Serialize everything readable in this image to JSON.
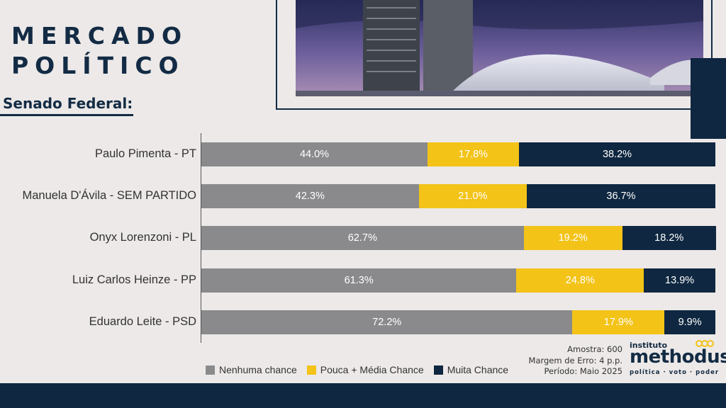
{
  "header": {
    "title_line1": "MERCADO",
    "title_line2": "POLÍTICO",
    "subtitle": "Senado Federal:"
  },
  "colors": {
    "nenhuma": "#8a8a8c",
    "pouca_media": "#f3c318",
    "muita": "#0f2740",
    "label_light": "#ffffff",
    "label_dark": "#ffffff"
  },
  "chart_data": {
    "type": "bar",
    "orientation": "horizontal",
    "stacked": true,
    "percent_scale": 100,
    "categories": [
      "Paulo Pimenta - PT",
      "Manuela D'Ávila - SEM PARTIDO",
      "Onyx Lorenzoni - PL",
      "Luiz Carlos Heinze - PP",
      "Eduardo Leite - PSD"
    ],
    "series": [
      {
        "name": "Nenhuma chance",
        "color": "#8a8a8c",
        "values": [
          44.0,
          42.3,
          62.7,
          61.3,
          72.2
        ],
        "labels": [
          "44.0%",
          "42.3%",
          "62.7%",
          "61.3%",
          "72.2%"
        ]
      },
      {
        "name": "Pouca + Média Chance",
        "color": "#f3c318",
        "values": [
          17.8,
          21.0,
          19.2,
          24.8,
          17.9
        ],
        "labels": [
          "17.8%",
          "21.0%",
          "19.2%",
          "24.8%",
          "17.9%"
        ]
      },
      {
        "name": "Muita Chance",
        "color": "#0f2740",
        "values": [
          38.2,
          36.7,
          18.2,
          13.9,
          9.9
        ],
        "labels": [
          "38.2%",
          "36.7%",
          "18.2%",
          "13.9%",
          "9.9%"
        ]
      }
    ],
    "legend": "bottom",
    "grid": false
  },
  "notes": {
    "amostra": "Amostra: 600",
    "margem": "Margem de Erro: 4 p.p.",
    "periodo": "Período: Maio 2025"
  },
  "logo": {
    "small": "instituto",
    "big": "methodus",
    "tagline": "política · voto · poder"
  }
}
